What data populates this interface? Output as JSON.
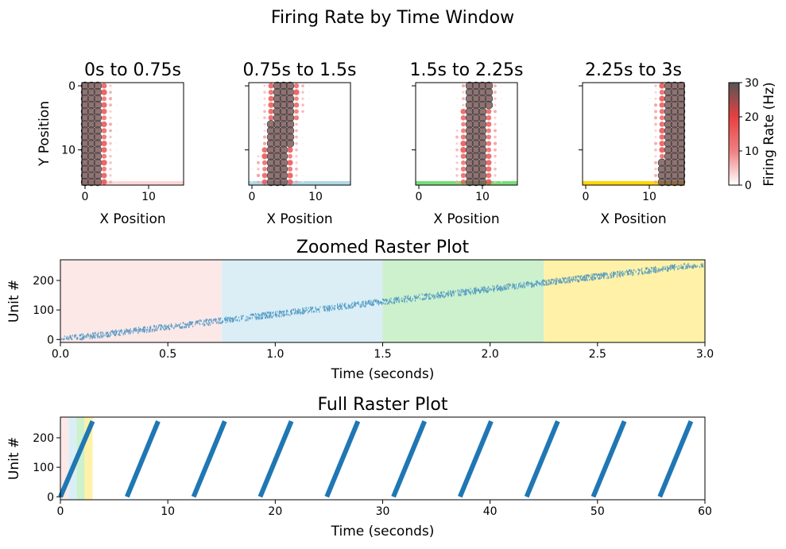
{
  "figure": {
    "title": "Firing Rate by Time Window"
  },
  "chart_data": [
    {
      "type": "scatter",
      "kind": "grid-heatmap",
      "title": "0s to 0.75s",
      "xlabel": "X Position",
      "ylabel": "Y Position",
      "xlim": [
        -0.5,
        15.5
      ],
      "ylim": [
        15.5,
        -0.5
      ],
      "y_inverted": true,
      "xticks": [
        0,
        10
      ],
      "yticks": [
        0,
        10
      ],
      "band_color": "#fcd5d5",
      "active_x_center": 1.2,
      "active_x_by_row_end": 1.0
    },
    {
      "type": "scatter",
      "kind": "grid-heatmap",
      "title": "0.75s to 1.5s",
      "xlabel": "X Position",
      "ylabel": "",
      "xlim": [
        -0.5,
        15.5
      ],
      "ylim": [
        15.5,
        -0.5
      ],
      "y_inverted": true,
      "xticks": [
        0,
        10
      ],
      "yticks": [
        0,
        10
      ],
      "band_color": "#add8e6",
      "active_x_center": 5.0,
      "active_x_by_row_end": 4.0
    },
    {
      "type": "scatter",
      "kind": "grid-heatmap",
      "title": "1.5s to 2.25s",
      "xlabel": "X Position",
      "ylabel": "",
      "xlim": [
        -0.5,
        15.5
      ],
      "ylim": [
        15.5,
        -0.5
      ],
      "y_inverted": true,
      "xticks": [
        0,
        10
      ],
      "yticks": [
        0,
        10
      ],
      "band_color": "#77dd77",
      "active_x_center": 9.5,
      "active_x_by_row_end": 9.0
    },
    {
      "type": "scatter",
      "kind": "grid-heatmap",
      "title": "2.25s to 3s",
      "xlabel": "X Position",
      "ylabel": "",
      "xlim": [
        -0.5,
        15.5
      ],
      "ylim": [
        15.5,
        -0.5
      ],
      "y_inverted": true,
      "xticks": [
        0,
        10
      ],
      "yticks": [
        0,
        10
      ],
      "band_color": "#ffd700",
      "active_x_center": 14.0,
      "active_x_by_row_end": 13.5
    },
    {
      "type": "colorbar",
      "label": "Firing Rate (Hz)",
      "range": [
        0,
        30
      ],
      "ticks": [
        0,
        10,
        20,
        30
      ],
      "colors": [
        "#ffffff",
        "#f08080",
        "#e84040",
        "#555555"
      ]
    },
    {
      "type": "scatter",
      "kind": "raster",
      "title": "Zoomed Raster Plot",
      "xlabel": "Time (seconds)",
      "ylabel": "Unit #",
      "xlim": [
        0,
        3
      ],
      "ylim": [
        -10,
        270
      ],
      "xticks": [
        "0.0",
        "0.5",
        "1.0",
        "1.5",
        "2.0",
        "2.5",
        "3.0"
      ],
      "yticks": [
        0,
        100,
        200
      ],
      "windows": [
        {
          "start": 0,
          "end": 0.75,
          "color": "#fde8e8"
        },
        {
          "start": 0.75,
          "end": 1.5,
          "color": "#dbeef5"
        },
        {
          "start": 1.5,
          "end": 2.25,
          "color": "#cdf0cd"
        },
        {
          "start": 2.25,
          "end": 3.0,
          "color": "#fff2a8"
        }
      ],
      "units": 256,
      "sweep": {
        "t_start": 0,
        "t_end": 3.0,
        "unit_start": 0,
        "unit_end": 256
      }
    },
    {
      "type": "scatter",
      "kind": "raster",
      "title": "Full Raster Plot",
      "xlabel": "Time (seconds)",
      "ylabel": "Unit #",
      "xlim": [
        0,
        60
      ],
      "ylim": [
        -10,
        270
      ],
      "xticks": [
        0,
        10,
        20,
        30,
        40,
        50,
        60
      ],
      "yticks": [
        0,
        100,
        200
      ],
      "windows": [
        {
          "start": 0,
          "end": 0.75,
          "color": "#fde8e8"
        },
        {
          "start": 0.75,
          "end": 1.5,
          "color": "#dbeef5"
        },
        {
          "start": 1.5,
          "end": 2.25,
          "color": "#cdf0cd"
        },
        {
          "start": 2.25,
          "end": 3.0,
          "color": "#fff2a8"
        }
      ],
      "sweeps": [
        {
          "t_start": 0,
          "t_end": 3.0
        },
        {
          "t_start": 6.2,
          "t_end": 9.1
        },
        {
          "t_start": 12.4,
          "t_end": 15.3
        },
        {
          "t_start": 18.6,
          "t_end": 21.5
        },
        {
          "t_start": 24.8,
          "t_end": 27.7
        },
        {
          "t_start": 31.0,
          "t_end": 33.9
        },
        {
          "t_start": 37.2,
          "t_end": 40.1
        },
        {
          "t_start": 43.4,
          "t_end": 46.3
        },
        {
          "t_start": 49.6,
          "t_end": 52.5
        },
        {
          "t_start": 55.8,
          "t_end": 58.7
        }
      ],
      "spike_color": "#1f77b4"
    }
  ]
}
